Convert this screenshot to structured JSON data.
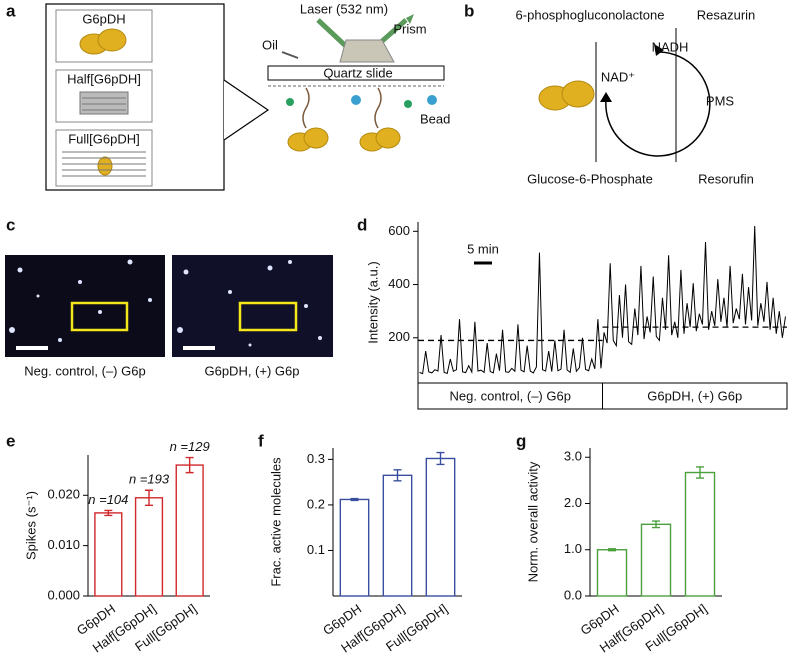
{
  "panels": [
    "a",
    "b",
    "c",
    "d",
    "e",
    "f",
    "g"
  ],
  "panel_a": {
    "insets": [
      "G6pDH",
      "Half[G6pDH]",
      "Full[G6pDH]"
    ],
    "laser": "Laser (532 nm)",
    "prism": "Prism",
    "oil": "Oil",
    "slide": "Quartz slide",
    "bead": "Bead"
  },
  "panel_b": {
    "product": "6-phosphogluconolactone",
    "substrate": "Glucose-6-Phosphate",
    "resazurin": "Resazurin",
    "resorufin": "Resorufin",
    "nadh": "NADH",
    "nad": "NAD⁺",
    "pms": "PMS"
  },
  "panel_c": {
    "captions": [
      "Neg. control, (–) G6p",
      "G6pDH, (+) G6p"
    ]
  },
  "chart_data": [
    {
      "type": "line",
      "y_label": "Intensity (a.u.)",
      "scale_bar": "5 min",
      "conditions": [
        "Neg. control, (–) G6p",
        "G6pDH, (+) G6p"
      ],
      "thresholds": [
        190,
        240
      ],
      "color": "#000000",
      "ylim": [
        30,
        635
      ],
      "yticks": [
        200,
        400,
        600
      ],
      "values": [
        70,
        65,
        150,
        72,
        68,
        80,
        75,
        210,
        70,
        66,
        120,
        74,
        80,
        270,
        72,
        69,
        95,
        71,
        260,
        75,
        78,
        70,
        180,
        73,
        68,
        140,
        76,
        230,
        72,
        70,
        85,
        74,
        250,
        78,
        72,
        170,
        75,
        68,
        90,
        520,
        80,
        75,
        150,
        73,
        190,
        76,
        82,
        230,
        79,
        70,
        160,
        74,
        88,
        200,
        81,
        76,
        120,
        83,
        270,
        85,
        220,
        180,
        480,
        190,
        170,
        360,
        200,
        400,
        185,
        175,
        310,
        210,
        470,
        195,
        280,
        220,
        430,
        205,
        190,
        350,
        230,
        510,
        210,
        260,
        200,
        455,
        215,
        330,
        240,
        405,
        225,
        290,
        250,
        560,
        230,
        300,
        245,
        420,
        260,
        350,
        240,
        470,
        255,
        310,
        270,
        440,
        250,
        390,
        265,
        620,
        245,
        330,
        260,
        410,
        230,
        350,
        215,
        300,
        200,
        280
      ]
    },
    {
      "type": "bar",
      "y_label": "Spikes (s⁻¹)",
      "color": "#d0282b",
      "categories": [
        "G6pDH",
        "Half[G6pDH]",
        "Full[G6pDH]"
      ],
      "values": [
        0.0165,
        0.0195,
        0.026
      ],
      "errors": [
        0.0005,
        0.0015,
        0.0015
      ],
      "annotations": [
        "n =104",
        "n =193",
        "n =129"
      ],
      "ylim": [
        0,
        0.028
      ],
      "yticks": [
        {
          "value": 0,
          "label": "0.000"
        },
        {
          "value": 0.01,
          "label": "0.010"
        },
        {
          "value": 0.02,
          "label": "0.020"
        }
      ]
    },
    {
      "type": "bar",
      "y_label": "Frac. active molecules",
      "color": "#3a4ea0",
      "categories": [
        "G6pDH",
        "Half[G6pDH]",
        "Full[G6pDH]"
      ],
      "values": [
        0.212,
        0.265,
        0.302
      ],
      "errors": [
        0.002,
        0.012,
        0.013
      ],
      "ylim": [
        0,
        0.325
      ],
      "yticks": [
        0.1,
        0.2,
        0.3
      ]
    },
    {
      "type": "bar",
      "y_label": "Norm. overall activity",
      "color": "#4aa13c",
      "categories": [
        "G6pDH",
        "Half[G6pDH]",
        "Full[G6pDH]"
      ],
      "values": [
        1.0,
        1.55,
        2.67
      ],
      "errors": [
        0.02,
        0.07,
        0.12
      ],
      "ylim": [
        0,
        3.2
      ],
      "yticks": [
        {
          "value": 0,
          "label": "0.0"
        },
        {
          "value": 1,
          "label": "1.0"
        },
        {
          "value": 2,
          "label": "2.0"
        },
        {
          "value": 3,
          "label": "3.0"
        }
      ]
    }
  ]
}
